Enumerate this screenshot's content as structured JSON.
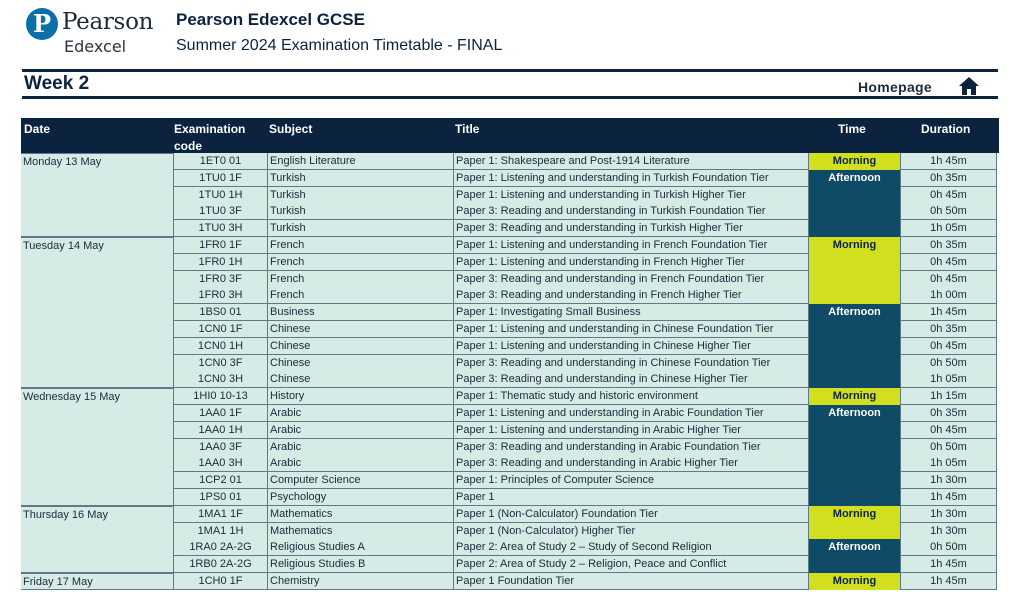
{
  "logo": {
    "word": "Pearson",
    "sub": "Edexcel",
    "mark": "P"
  },
  "header": {
    "title": "Pearson Edexcel GCSE",
    "subtitle": "Summer 2024 Examination Timetable - FINAL"
  },
  "week": "Week 2",
  "nav": {
    "homepage": "Homepage",
    "home_icon": "home-icon"
  },
  "colors": {
    "navy": "#0c2340",
    "morning": "#d2df1e",
    "afternoon": "#0f4a66",
    "row_bg": "#d6ebe6"
  },
  "table": {
    "headers": {
      "date": "Date",
      "code_line1": "Examination",
      "code_line2": "code",
      "subject": "Subject",
      "title": "Title",
      "time": "Time",
      "duration": "Duration"
    },
    "days": [
      {
        "date": "Monday 13 May",
        "rows": [
          [
            "1ET0 01",
            "English Literature",
            "Paper 1: Shakespeare and Post-1914 Literature",
            "1h 45m"
          ],
          [
            "1TU0 1F",
            "Turkish",
            "Paper 1: Listening and understanding in Turkish Foundation Tier",
            "0h 35m"
          ],
          [
            "1TU0 1H",
            "Turkish",
            "Paper 1: Listening and understanding in Turkish Higher Tier",
            "0h 45m"
          ],
          [
            "1TU0 3F",
            "Turkish",
            "Paper 3: Reading and understanding in Turkish Foundation Tier",
            "0h 50m"
          ],
          [
            "1TU0 3H",
            "Turkish",
            "Paper 3: Reading and understanding in Turkish Higher Tier",
            "1h 05m"
          ]
        ],
        "sessions": [
          {
            "label": "Morning",
            "type": "morning",
            "start": 0,
            "span": 1
          },
          {
            "label": "Afternoon",
            "type": "afternoon",
            "start": 1,
            "span": 4
          }
        ]
      },
      {
        "date": "Tuesday 14 May",
        "rows": [
          [
            "1FR0 1F",
            "French",
            "Paper 1: Listening and understanding in French Foundation Tier",
            "0h 35m"
          ],
          [
            "1FR0 1H",
            "French",
            "Paper 1: Listening and understanding in French Higher Tier",
            "0h 45m"
          ],
          [
            "1FR0 3F",
            "French",
            "Paper 3: Reading and understanding in French Foundation Tier",
            "0h 45m"
          ],
          [
            "1FR0 3H",
            "French",
            "Paper 3: Reading and understanding in French Higher Tier",
            "1h 00m"
          ],
          [
            "1BS0 01",
            "Business",
            "Paper 1: Investigating Small Business",
            "1h 45m"
          ],
          [
            "1CN0 1F",
            "Chinese",
            "Paper 1: Listening and understanding in Chinese Foundation Tier",
            "0h 35m"
          ],
          [
            "1CN0 1H",
            "Chinese",
            "Paper 1: Listening and understanding in Chinese Higher Tier",
            "0h 45m"
          ],
          [
            "1CN0 3F",
            "Chinese",
            "Paper 3: Reading and understanding in Chinese Foundation Tier",
            "0h 50m"
          ],
          [
            "1CN0 3H",
            "Chinese",
            "Paper 3: Reading and understanding in Chinese Higher Tier",
            "1h 05m"
          ]
        ],
        "sessions": [
          {
            "label": "Morning",
            "type": "morning",
            "start": 0,
            "span": 4
          },
          {
            "label": "Afternoon",
            "type": "afternoon",
            "start": 4,
            "span": 5
          }
        ]
      },
      {
        "date": "Wednesday 15 May",
        "rows": [
          [
            "1HI0 10-13",
            "History",
            "Paper 1: Thematic study and historic environment",
            "1h 15m"
          ],
          [
            "1AA0 1F",
            "Arabic",
            "Paper 1: Listening and understanding in Arabic Foundation Tier",
            "0h 35m"
          ],
          [
            "1AA0 1H",
            "Arabic",
            "Paper 1: Listening and understanding in Arabic Higher Tier",
            "0h 45m"
          ],
          [
            "1AA0 3F",
            "Arabic",
            "Paper 3: Reading and understanding in Arabic Foundation Tier",
            "0h 50m"
          ],
          [
            "1AA0 3H",
            "Arabic",
            "Paper 3: Reading and understanding in Arabic Higher Tier",
            "1h 05m"
          ],
          [
            "1CP2 01",
            "Computer Science",
            "Paper 1: Principles of Computer Science",
            "1h 30m"
          ],
          [
            "1PS0 01",
            "Psychology",
            "Paper 1",
            "1h 45m"
          ]
        ],
        "sessions": [
          {
            "label": "Morning",
            "type": "morning",
            "start": 0,
            "span": 1
          },
          {
            "label": "Afternoon",
            "type": "afternoon",
            "start": 1,
            "span": 6
          }
        ]
      },
      {
        "date": "Thursday 16 May",
        "rows": [
          [
            "1MA1 1F",
            "Mathematics",
            "Paper 1 (Non-Calculator) Foundation Tier",
            "1h 30m"
          ],
          [
            "1MA1 1H",
            "Mathematics",
            "Paper 1 (Non-Calculator) Higher Tier",
            "1h 30m"
          ],
          [
            "1RA0 2A-2G",
            "Religious Studies A",
            "Paper 2: Area of Study 2 – Study of Second Religion",
            "0h 50m"
          ],
          [
            "1RB0 2A-2G",
            "Religious Studies B",
            "Paper 2: Area of Study 2 – Religion, Peace and Conflict",
            "1h 45m"
          ]
        ],
        "sessions": [
          {
            "label": "Morning",
            "type": "morning",
            "start": 0,
            "span": 2
          },
          {
            "label": "Afternoon",
            "type": "afternoon",
            "start": 2,
            "span": 2
          }
        ]
      },
      {
        "date": "Friday 17 May",
        "rows": [
          [
            "1CH0 1F",
            "Chemistry",
            "Paper 1 Foundation Tier",
            "1h 45m"
          ]
        ],
        "sessions": [
          {
            "label": "Morning",
            "type": "morning",
            "start": 0,
            "span": 1
          }
        ]
      }
    ]
  }
}
